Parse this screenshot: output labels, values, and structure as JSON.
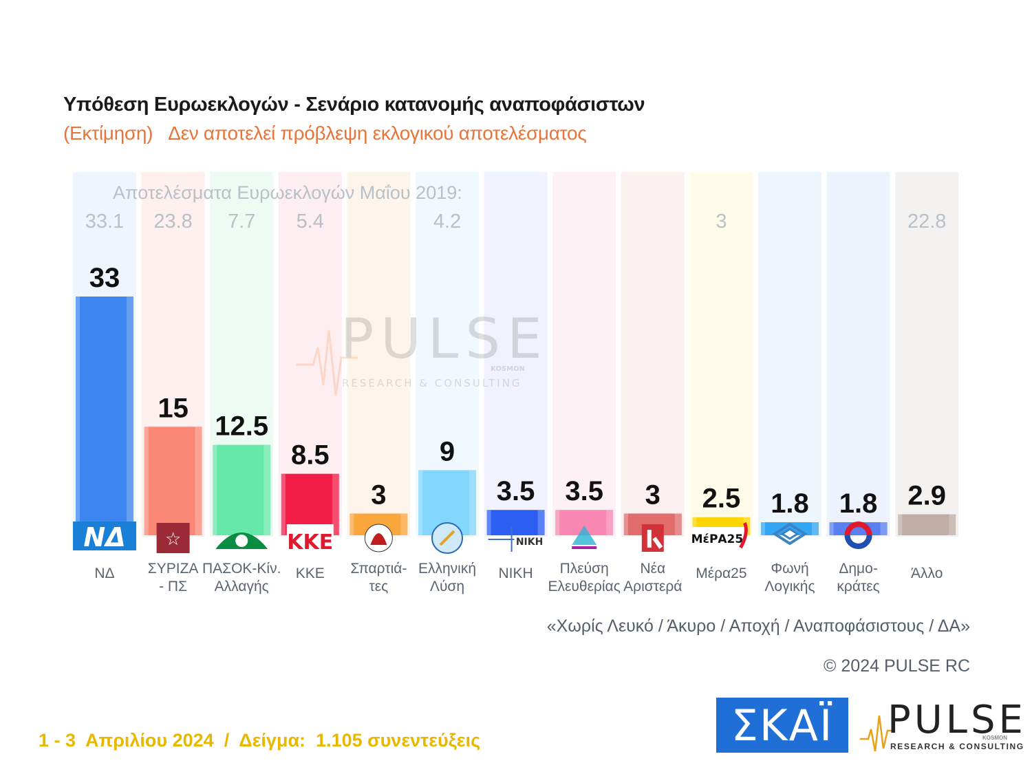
{
  "title": "Υπόθεση Ευρωεκλογών - Σενάριο κατανομής αναποφάσιστων",
  "subtitle": {
    "part1": "(Εκτίμηση)",
    "part2": "Δεν αποτελεί πρόβλεψη εκλογικού αποτελέσματος"
  },
  "previous_results_label": "Αποτελέσματα Ευρωεκλογών Μαΐου 2019:",
  "watermark": {
    "word": "PULSE",
    "tagline": "RESEARCH & CONSULTING",
    "kosmon": "KOSMON"
  },
  "chart_data": {
    "type": "bar",
    "categories": [
      [
        "ΝΔ"
      ],
      [
        "ΣΥΡΙΖΑ",
        "- ΠΣ"
      ],
      [
        "ΠΑΣΟΚ-Κίν.",
        "Αλλαγής"
      ],
      [
        "ΚΚΕ"
      ],
      [
        "Σπαρτιά-",
        "τες"
      ],
      [
        "Ελληνική",
        "Λύση"
      ],
      [
        "ΝΙΚΗ"
      ],
      [
        "Πλεύση",
        "Ελευθερίας"
      ],
      [
        "Νέα",
        "Αριστερά"
      ],
      [
        "Μέρα25"
      ],
      [
        "Φωνή",
        "Λογικής"
      ],
      [
        "Δημο-",
        "κράτες"
      ],
      [
        "Άλλο"
      ]
    ],
    "values": [
      33,
      15,
      12.5,
      8.5,
      3,
      9,
      3.5,
      3.5,
      3,
      2.5,
      1.8,
      1.8,
      2.9
    ],
    "value_labels": [
      "33",
      "15",
      "12.5",
      "8.5",
      "3",
      "9",
      "3.5",
      "3.5",
      "3",
      "2.5",
      "1.8",
      "1.8",
      "2.9"
    ],
    "previous_2019": [
      "33.1",
      "23.8",
      "7.7",
      "5.4",
      "",
      "4.2",
      "",
      "",
      "",
      "3",
      "",
      "",
      "22.8"
    ],
    "colors": [
      "#3d85f0",
      "#fb8877",
      "#66e9a8",
      "#f41d47",
      "#fba63c",
      "#83d7fd",
      "#2c5ef2",
      "#f887b1",
      "#e06c6c",
      "#ffd500",
      "#32a6f5",
      "#5a7ff0",
      "#bfaca5"
    ],
    "column_tints": [
      "#eef5fd",
      "#fdf0ef",
      "#eefbf3",
      "#fdeef1",
      "#fdf5ec",
      "#eff9fe",
      "#f0f2fd",
      "#fdf1f5",
      "#fbf0f0",
      "#fffbe9",
      "#eef6fd",
      "#eef2fd",
      "#f4f2f1"
    ],
    "logos": [
      "nd-logo",
      "syriza-logo",
      "pasok-logo",
      "kke-logo",
      "spartiates-logo",
      "elliniki-lysi-logo",
      "niki-logo",
      "plefsi-logo",
      "nea-aristera-logo",
      "mera25-logo",
      "foni-logikis-logo",
      "dimokrates-logo",
      ""
    ],
    "logo_text": {
      "nd": "ΝΔ",
      "kke": "ΚΚΕ",
      "niki": "ΝΙΚΗ",
      "mera25": "ΜέΡΑ25"
    },
    "ylim": [
      0,
      40
    ]
  },
  "footnote": "«Χωρίς Λευκό / Άκυρο / Αποχή / Αναποφάσιστους / ΔΑ»",
  "copyright": "© 2024 PULSE RC",
  "fieldwork": "1 - 3  Απριλίου 2024  /  Δείγμα:  1.105 συνεντεύξεις",
  "skai_logo": "ΣΚΑΪ",
  "pulse_logo": {
    "word": "PULSE",
    "tagline": "RESEARCH & CONSULTING",
    "kosmon": "KOSMON"
  }
}
